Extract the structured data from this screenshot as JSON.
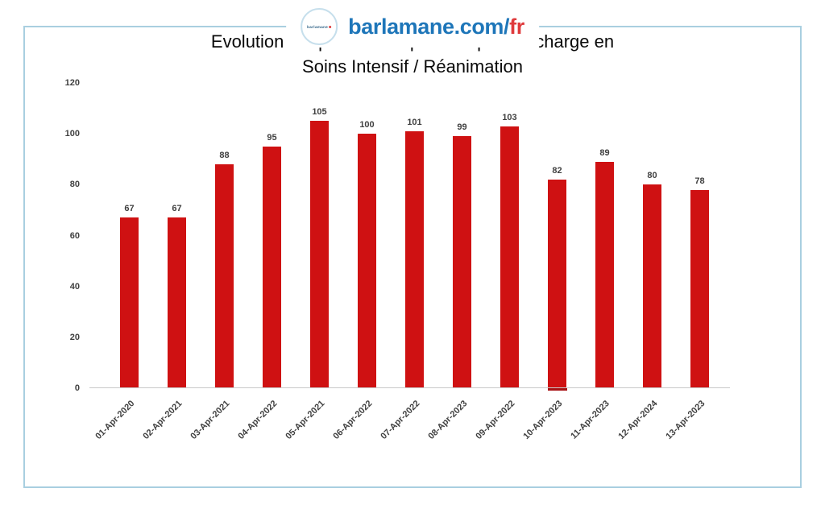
{
  "brand": {
    "circle_label": "barlamane",
    "site_name_blue": "barlamane.com/",
    "site_name_red": "fr",
    "colors": {
      "blue": "#1E76B9",
      "red": "#DF3A3C",
      "frame_border": "#A9CFE0"
    }
  },
  "chart_data": {
    "type": "bar",
    "title": "Evolution temporelle des patients pris en charge en Soins Intensif / Réanimation",
    "title_lines": [
      "Evolution temporelle des patients pris en charge en",
      "Soins Intensif / Réanimation"
    ],
    "categories": [
      "01-Apr-2020",
      "02-Apr-2021",
      "03-Apr-2021",
      "04-Apr-2022",
      "05-Apr-2021",
      "06-Apr-2022",
      "07-Apr-2022",
      "08-Apr-2023",
      "09-Apr-2022",
      "10-Apr-2023",
      "11-Apr-2023",
      "12-Apr-2024",
      "13-Apr-2023"
    ],
    "values": [
      67,
      67,
      88,
      95,
      105,
      100,
      101,
      99,
      103,
      82,
      89,
      80,
      78
    ],
    "xlabel": "",
    "ylabel": "",
    "ylim": [
      0,
      120
    ],
    "y_ticks": [
      0,
      20,
      40,
      60,
      80,
      100,
      120
    ],
    "grid": false,
    "legend": false,
    "data_labels": true,
    "x_label_rotation_deg": -45,
    "bar_color": "#CF1112",
    "label_color": "#404040",
    "axis_line_color": "#C9C9C9",
    "baseline_marker_index": 9
  }
}
